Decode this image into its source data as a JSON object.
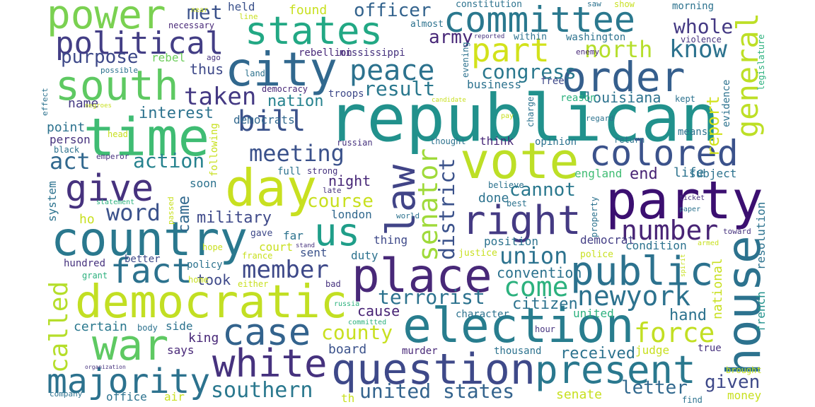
{
  "words": [
    {
      "t": "republican",
      "c": "#21918c"
    },
    {
      "t": "election",
      "c": "#287d8e"
    },
    {
      "t": "vote",
      "c": "#bddf26"
    },
    {
      "t": "party",
      "c": "#3b0f70"
    },
    {
      "t": "house",
      "c": "#2c728e"
    },
    {
      "t": "time",
      "c": "#3fbc73"
    },
    {
      "t": "day",
      "c": "#c8e020"
    },
    {
      "t": "country",
      "c": "#2a788e"
    },
    {
      "t": "democratic",
      "c": "#c2df23"
    },
    {
      "t": "question",
      "c": "#3e4989"
    },
    {
      "t": "city",
      "c": "#31688e"
    },
    {
      "t": "place",
      "c": "#482878"
    },
    {
      "t": "war",
      "c": "#5ec962"
    },
    {
      "t": "public",
      "c": "#2c728e"
    },
    {
      "t": "committee",
      "c": "#2a788e"
    },
    {
      "t": "order",
      "c": "#355f8d"
    },
    {
      "t": "states",
      "c": "#22a884"
    },
    {
      "t": "power",
      "c": "#7ad151"
    },
    {
      "t": "south",
      "c": "#5ec962"
    },
    {
      "t": "white",
      "c": "#46327e"
    },
    {
      "t": "case",
      "c": "#33638d"
    },
    {
      "t": "present",
      "c": "#2a788e"
    },
    {
      "t": "right",
      "c": "#443a83"
    },
    {
      "t": "law",
      "c": "#414487"
    },
    {
      "t": "majority",
      "c": "#2c728e"
    },
    {
      "t": "us",
      "c": "#1f9e89"
    },
    {
      "t": "colored",
      "c": "#3b528b"
    },
    {
      "t": "political",
      "c": "#433e85"
    },
    {
      "t": "give",
      "c": "#46327e"
    },
    {
      "t": "fact",
      "c": "#2c728e"
    },
    {
      "t": "part",
      "c": "#d2e21b"
    },
    {
      "t": "peace",
      "c": "#2c728e"
    },
    {
      "t": "general",
      "c": "#bddf26"
    },
    {
      "t": "senator",
      "c": "#9fda3a"
    },
    {
      "t": "number",
      "c": "#482475"
    },
    {
      "t": "newyork",
      "c": "#2c728e"
    },
    {
      "t": "bill",
      "c": "#3b528b"
    },
    {
      "t": "meeting",
      "c": "#3b528b"
    },
    {
      "t": "member",
      "c": "#3e4989"
    },
    {
      "t": "taken",
      "c": "#443983"
    },
    {
      "t": "force",
      "c": "#c2df23"
    },
    {
      "t": "come",
      "c": "#2cb17e"
    },
    {
      "t": "word",
      "c": "#3b528b"
    },
    {
      "t": "district",
      "c": "#3b528b"
    },
    {
      "t": "called",
      "c": "#b5de2b"
    },
    {
      "t": "southern",
      "c": "#2a788e"
    },
    {
      "t": "united states",
      "c": "#33638d"
    },
    {
      "t": "union",
      "c": "#2c728e"
    },
    {
      "t": "county",
      "c": "#c8e020"
    },
    {
      "t": "terrorist",
      "c": "#2c728e"
    },
    {
      "t": "action",
      "c": "#26828e"
    },
    {
      "t": "know",
      "c": "#2c728e"
    },
    {
      "t": "north",
      "c": "#b5de2b"
    },
    {
      "t": "result",
      "c": "#2a788e"
    },
    {
      "t": "met",
      "c": "#3b528b"
    },
    {
      "t": "whole",
      "c": "#443983"
    },
    {
      "t": "congress",
      "c": "#2a788e"
    },
    {
      "t": "army",
      "c": "#482878"
    },
    {
      "t": "officer",
      "c": "#33638d"
    },
    {
      "t": "purpose",
      "c": "#3e4989"
    },
    {
      "t": "act",
      "c": "#31688e"
    },
    {
      "t": "interest",
      "c": "#2c728e"
    },
    {
      "t": "report",
      "c": "#d2e21b"
    },
    {
      "t": "cannot",
      "c": "#2a788e"
    },
    {
      "t": "course",
      "c": "#c8e020"
    },
    {
      "t": "military",
      "c": "#3e4989"
    },
    {
      "t": "letter",
      "c": "#31688e"
    },
    {
      "t": "given",
      "c": "#3e4989"
    },
    {
      "t": "received",
      "c": "#2c728e"
    },
    {
      "t": "citizen",
      "c": "#2c728e"
    },
    {
      "t": "convention",
      "c": "#2c728e"
    },
    {
      "t": "nation",
      "c": "#26828e"
    },
    {
      "t": "louisiana",
      "c": "#2c728e"
    },
    {
      "t": "end",
      "c": "#482475"
    },
    {
      "t": "hand",
      "c": "#2c728e"
    },
    {
      "t": "cause",
      "c": "#482475"
    },
    {
      "t": "took",
      "c": "#3e4989"
    },
    {
      "t": "fact",
      "c": "#2c728e"
    },
    {
      "t": "certain",
      "c": "#2a788e"
    },
    {
      "t": "board",
      "c": "#3b528b"
    },
    {
      "t": "king",
      "c": "#482878"
    },
    {
      "t": "says",
      "c": "#482878"
    },
    {
      "t": "side",
      "c": "#2c728e"
    },
    {
      "t": "came",
      "c": "#31688e"
    },
    {
      "t": "thus",
      "c": "#3e4989"
    },
    {
      "t": "rebel",
      "c": "#6ccd5a"
    },
    {
      "t": "found",
      "c": "#c8e020"
    },
    {
      "t": "held",
      "c": "#3b528b"
    },
    {
      "t": "name",
      "c": "#443a83"
    },
    {
      "t": "point",
      "c": "#2c728e"
    },
    {
      "t": "person",
      "c": "#46327e"
    },
    {
      "t": "night",
      "c": "#482878"
    },
    {
      "t": "done",
      "c": "#2c728e"
    },
    {
      "t": "life",
      "c": "#2c728e"
    },
    {
      "t": "subject",
      "c": "#2c728e"
    },
    {
      "t": "england",
      "c": "#3fbc73"
    },
    {
      "t": "position",
      "c": "#2c728e"
    },
    {
      "t": "democrat",
      "c": "#433e85"
    },
    {
      "t": "condition",
      "c": "#2c728e"
    },
    {
      "t": "national",
      "c": "#c8e020"
    },
    {
      "t": "resolution",
      "c": "#2c728e"
    },
    {
      "t": "french",
      "c": "#21918c"
    },
    {
      "t": "judge",
      "c": "#c8e020"
    },
    {
      "t": "true",
      "c": "#46327e"
    },
    {
      "t": "senate",
      "c": "#c8e020"
    },
    {
      "t": "money",
      "c": "#c8e020"
    },
    {
      "t": "business",
      "c": "#2c728e"
    },
    {
      "t": "think",
      "c": "#482878"
    },
    {
      "t": "opinion",
      "c": "#2c728e"
    },
    {
      "t": "means",
      "c": "#2c728e"
    },
    {
      "t": "evidence",
      "c": "#2c728e"
    },
    {
      "t": "democrats",
      "c": "#31688e"
    },
    {
      "t": "london",
      "c": "#31688e"
    },
    {
      "t": "thing",
      "c": "#3e4989"
    },
    {
      "t": "court",
      "c": "#c8e020"
    },
    {
      "t": "sent",
      "c": "#3b528b"
    },
    {
      "t": "duty",
      "c": "#2c728e"
    },
    {
      "t": "far",
      "c": "#2c728e"
    },
    {
      "t": "ho",
      "c": "#c8e020"
    },
    {
      "t": "system",
      "c": "#2c728e"
    },
    {
      "t": "soon",
      "c": "#2c728e"
    },
    {
      "t": "following",
      "c": "#c8e020"
    },
    {
      "t": "united",
      "c": "#2cb17e"
    },
    {
      "t": "thousand",
      "c": "#2c728e"
    },
    {
      "t": "murder",
      "c": "#482878"
    },
    {
      "t": "office",
      "c": "#2c728e"
    },
    {
      "t": "air",
      "c": "#c8e020"
    },
    {
      "t": "th",
      "c": "#c8e020"
    },
    {
      "t": "hundred",
      "c": "#46327e"
    },
    {
      "t": "better",
      "c": "#3e4989"
    },
    {
      "t": "policy",
      "c": "#2c728e"
    },
    {
      "t": "home",
      "c": "#c8e020"
    },
    {
      "t": "gave",
      "c": "#3e4989"
    },
    {
      "t": "france",
      "c": "#c8e020"
    },
    {
      "t": "bad",
      "c": "#46327e"
    },
    {
      "t": "either",
      "c": "#c8e020"
    },
    {
      "t": "grant",
      "c": "#2cb17e"
    },
    {
      "t": "hope",
      "c": "#c8e020"
    },
    {
      "t": "full",
      "c": "#2c728e"
    },
    {
      "t": "strong",
      "c": "#46327e"
    },
    {
      "t": "russian",
      "c": "#46327e"
    },
    {
      "t": "thought",
      "c": "#2c728e"
    },
    {
      "t": "believe",
      "c": "#2c728e"
    },
    {
      "t": "best",
      "c": "#2c728e"
    },
    {
      "t": "free",
      "c": "#3e4989"
    },
    {
      "t": "troops",
      "c": "#3e4989"
    },
    {
      "t": "reason",
      "c": "#2cb17e"
    },
    {
      "t": "regard",
      "c": "#2c728e"
    },
    {
      "t": "return",
      "c": "#2c728e"
    },
    {
      "t": "kept",
      "c": "#2c728e"
    },
    {
      "t": "charge",
      "c": "#2c728e"
    },
    {
      "t": "pay",
      "c": "#c8e020"
    },
    {
      "t": "washington",
      "c": "#2c728e"
    },
    {
      "t": "within",
      "c": "#2c728e"
    },
    {
      "t": "violence",
      "c": "#46327e"
    },
    {
      "t": "enemy",
      "c": "#482878"
    },
    {
      "t": "legislature",
      "c": "#2cb17e"
    },
    {
      "t": "mississippi",
      "c": "#46327e"
    },
    {
      "t": "rebellion",
      "c": "#482878"
    },
    {
      "t": "evening",
      "c": "#2c728e"
    },
    {
      "t": "democracy",
      "c": "#482878"
    },
    {
      "t": "land",
      "c": "#2c728e"
    },
    {
      "t": "possible",
      "c": "#2c728e"
    },
    {
      "t": "ago",
      "c": "#46327e"
    },
    {
      "t": "necessary",
      "c": "#482878"
    },
    {
      "t": "near",
      "c": "#c8e020"
    },
    {
      "t": "line",
      "c": "#c8e020"
    },
    {
      "t": "almost",
      "c": "#2c728e"
    },
    {
      "t": "constitution",
      "c": "#2c728e"
    },
    {
      "t": "morning",
      "c": "#2c728e"
    },
    {
      "t": "saw",
      "c": "#2c728e"
    },
    {
      "t": "show",
      "c": "#c8e020"
    },
    {
      "t": "reported",
      "c": "#46327e"
    },
    {
      "t": "effect",
      "c": "#2c728e"
    },
    {
      "t": "negroes",
      "c": "#c8e020"
    },
    {
      "t": "candidate",
      "c": "#c8e020"
    },
    {
      "t": "head",
      "c": "#c8e020"
    },
    {
      "t": "black",
      "c": "#2c728e"
    },
    {
      "t": "emperor",
      "c": "#46327e"
    },
    {
      "t": "statement",
      "c": "#2cb17e"
    },
    {
      "t": "passed",
      "c": "#c8e020"
    },
    {
      "t": "late",
      "c": "#46327e"
    },
    {
      "t": "world",
      "c": "#2c728e"
    },
    {
      "t": "stand",
      "c": "#46327e"
    },
    {
      "t": "justice",
      "c": "#c8e020"
    },
    {
      "t": "police",
      "c": "#c8e020"
    },
    {
      "t": "property",
      "c": "#2c728e"
    },
    {
      "t": "ticket",
      "c": "#46327e"
    },
    {
      "t": "paper",
      "c": "#2c728e"
    },
    {
      "t": "toward",
      "c": "#46327e"
    },
    {
      "t": "armed",
      "c": "#c8e020"
    },
    {
      "t": "spirit",
      "c": "#c8e020"
    },
    {
      "t": "russia",
      "c": "#2cb17e"
    },
    {
      "t": "committed",
      "c": "#2cb17e"
    },
    {
      "t": "character",
      "c": "#2c728e"
    },
    {
      "t": "hour",
      "c": "#46327e"
    },
    {
      "t": "body",
      "c": "#2c728e"
    },
    {
      "t": "organization",
      "c": "#46327e"
    },
    {
      "t": "company",
      "c": "#2c728e"
    },
    {
      "t": "brought",
      "c": "#c8e020"
    },
    {
      "t": "find",
      "c": "#2c728e"
    }
  ]
}
